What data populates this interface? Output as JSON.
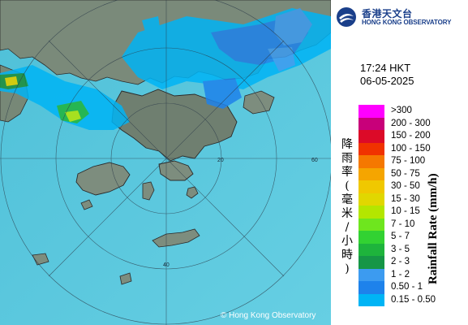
{
  "header": {
    "org_name_cn": "香港天文台",
    "org_name_en": "HONG KONG OBSERVATORY"
  },
  "timestamp": {
    "time": "17:24 HKT",
    "date": "06-05-2025"
  },
  "legend": {
    "title_cn": [
      "降",
      "雨",
      "率",
      "(",
      "毫",
      "米",
      "/",
      "小",
      "時",
      ")"
    ],
    "title_en": "Rainfall Rate (mm/h)",
    "items": [
      {
        "label": ">300",
        "color": "#ff00ff"
      },
      {
        "label": "200 - 300",
        "color": "#c8007a"
      },
      {
        "label": "150 - 200",
        "color": "#dc0a28"
      },
      {
        "label": "100 - 150",
        "color": "#f03200"
      },
      {
        "label": "75 - 100",
        "color": "#f57800"
      },
      {
        "label": "50 - 75",
        "color": "#f5a500"
      },
      {
        "label": "30 - 50",
        "color": "#f0c800"
      },
      {
        "label": "15 - 30",
        "color": "#e1d700"
      },
      {
        "label": "10 - 15",
        "color": "#b4e600"
      },
      {
        "label": "7 - 10",
        "color": "#6ee61e"
      },
      {
        "label": "5 - 7",
        "color": "#32d232"
      },
      {
        "label": "3 - 5",
        "color": "#1eb43c"
      },
      {
        "label": "2 - 3",
        "color": "#169646"
      },
      {
        "label": "1 - 2",
        "color": "#3c9bf0"
      },
      {
        "label": "0.50 - 1",
        "color": "#1e82eb"
      },
      {
        "label": "0.15 - 0.50",
        "color": "#00b4f5"
      }
    ]
  },
  "map": {
    "range_labels": [
      "60",
      "40",
      "20"
    ],
    "copyright": "© Hong Kong Observatory"
  }
}
